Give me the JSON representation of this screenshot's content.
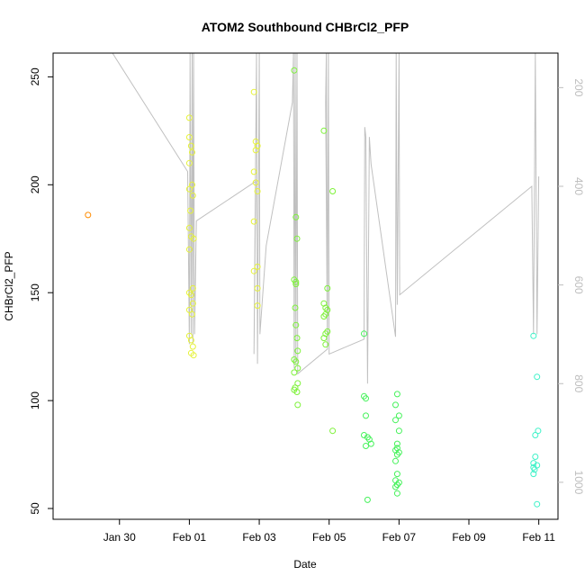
{
  "chart_data": {
    "type": "scatter",
    "title": "ATOM2 Southbound CHBrCl2_PFP",
    "xlabel": "Date",
    "ylabel": "CHBrCl2_PFP",
    "x_ticks": [
      "Jan 30",
      "Feb 01",
      "Feb 03",
      "Feb 05",
      "Feb 07",
      "Feb 09",
      "Feb 11"
    ],
    "x_tick_days": [
      30,
      32,
      34,
      36,
      38,
      40,
      42
    ],
    "xlim": [
      28.1,
      42.55
    ],
    "y_ticks": [
      50,
      100,
      150,
      200,
      250
    ],
    "ylim": [
      45,
      261
    ],
    "right_axis": {
      "ticks": [
        200,
        400,
        600,
        800,
        1000
      ],
      "range": [
        130,
        1075
      ],
      "color": "#bdbdbd",
      "reversed": true
    },
    "grid": false,
    "legend": "none",
    "series": [
      {
        "color": "#ff8c00",
        "points": [
          [
            29.1,
            186
          ]
        ]
      },
      {
        "color": "#e6f23a",
        "points": [
          [
            32.0,
            222
          ],
          [
            32.05,
            218
          ],
          [
            32.0,
            210
          ],
          [
            32.08,
            200
          ],
          [
            32.0,
            198
          ],
          [
            32.1,
            195
          ],
          [
            32.03,
            188
          ],
          [
            32.0,
            180
          ],
          [
            32.05,
            176
          ],
          [
            32.0,
            170
          ],
          [
            32.1,
            152
          ],
          [
            32.0,
            150
          ],
          [
            32.05,
            149
          ],
          [
            32.1,
            145
          ],
          [
            32.0,
            142
          ],
          [
            32.08,
            140
          ],
          [
            32.0,
            130
          ],
          [
            32.05,
            128
          ],
          [
            32.1,
            125
          ],
          [
            32.05,
            122
          ],
          [
            32.0,
            231
          ],
          [
            32.08,
            215
          ],
          [
            32.12,
            175
          ],
          [
            32.12,
            121
          ],
          [
            33.85,
            243
          ],
          [
            33.9,
            220
          ],
          [
            33.95,
            218
          ],
          [
            33.9,
            216
          ],
          [
            33.85,
            206
          ],
          [
            33.9,
            201
          ],
          [
            33.95,
            197
          ],
          [
            33.85,
            183
          ],
          [
            33.95,
            162
          ],
          [
            33.85,
            160
          ],
          [
            33.95,
            152
          ],
          [
            33.95,
            144
          ]
        ]
      },
      {
        "color": "#7ef23a",
        "points": [
          [
            35.0,
            253
          ],
          [
            35.05,
            185
          ],
          [
            35.08,
            175
          ],
          [
            35.0,
            156
          ],
          [
            35.05,
            154
          ],
          [
            35.03,
            143
          ],
          [
            35.05,
            135
          ],
          [
            35.08,
            129
          ],
          [
            35.1,
            123
          ],
          [
            35.0,
            119
          ],
          [
            35.05,
            118
          ],
          [
            35.1,
            115
          ],
          [
            35.0,
            113
          ],
          [
            35.1,
            108
          ],
          [
            35.03,
            106
          ],
          [
            35.0,
            105
          ],
          [
            35.08,
            104
          ],
          [
            35.1,
            98
          ],
          [
            35.05,
            155
          ],
          [
            35.85,
            225
          ],
          [
            35.95,
            152
          ],
          [
            35.85,
            145
          ],
          [
            35.9,
            143
          ],
          [
            35.95,
            142
          ],
          [
            35.9,
            140
          ],
          [
            35.85,
            139
          ],
          [
            35.95,
            132
          ],
          [
            35.9,
            131
          ],
          [
            35.85,
            129
          ],
          [
            35.9,
            126
          ],
          [
            36.1,
            197
          ],
          [
            36.1,
            86
          ]
        ]
      },
      {
        "color": "#45f25a",
        "points": [
          [
            37.0,
            131
          ],
          [
            37.0,
            102
          ],
          [
            37.05,
            101
          ],
          [
            37.05,
            93
          ],
          [
            37.0,
            84
          ],
          [
            37.1,
            83
          ],
          [
            37.15,
            82
          ],
          [
            37.2,
            80
          ],
          [
            37.05,
            79
          ],
          [
            37.1,
            54
          ],
          [
            37.95,
            103
          ],
          [
            37.9,
            98
          ],
          [
            38.0,
            93
          ],
          [
            37.9,
            91
          ],
          [
            38.0,
            86
          ],
          [
            37.95,
            80
          ],
          [
            37.95,
            78
          ],
          [
            37.9,
            77
          ],
          [
            38.0,
            76
          ],
          [
            37.95,
            75
          ],
          [
            37.9,
            72
          ],
          [
            37.95,
            66
          ],
          [
            37.9,
            63
          ],
          [
            38.0,
            62
          ],
          [
            37.95,
            61
          ],
          [
            37.9,
            60
          ],
          [
            37.95,
            57
          ]
        ]
      },
      {
        "color": "#3ef2c8",
        "points": [
          [
            41.85,
            130
          ],
          [
            41.95,
            111
          ],
          [
            41.98,
            86
          ],
          [
            41.9,
            84
          ],
          [
            41.9,
            74
          ],
          [
            41.85,
            71
          ],
          [
            41.95,
            70
          ],
          [
            41.85,
            69
          ],
          [
            41.88,
            68
          ],
          [
            41.85,
            66
          ],
          [
            41.95,
            52
          ]
        ]
      }
    ],
    "flight_track": {
      "color": "#c0c0c0",
      "axis": "right",
      "points": [
        [
          29.8,
          130
        ],
        [
          31.95,
          370
        ],
        [
          32.0,
          720
        ],
        [
          32.02,
          130
        ],
        [
          32.05,
          700
        ],
        [
          32.08,
          130
        ],
        [
          32.1,
          720
        ],
        [
          32.12,
          130
        ],
        [
          32.15,
          700
        ],
        [
          32.2,
          470
        ],
        [
          33.9,
          390
        ],
        [
          33.85,
          740
        ],
        [
          33.92,
          130
        ],
        [
          33.95,
          760
        ],
        [
          34.0,
          130
        ],
        [
          34.02,
          700
        ],
        [
          34.2,
          520
        ],
        [
          34.95,
          230
        ],
        [
          34.98,
          130
        ],
        [
          35.0,
          770
        ],
        [
          35.03,
          130
        ],
        [
          35.05,
          760
        ],
        [
          35.08,
          130
        ],
        [
          35.1,
          780
        ],
        [
          35.95,
          730
        ],
        [
          35.9,
          230
        ],
        [
          35.92,
          130
        ],
        [
          35.95,
          720
        ],
        [
          35.98,
          130
        ],
        [
          36.0,
          740
        ],
        [
          37.0,
          710
        ],
        [
          37.02,
          280
        ],
        [
          37.05,
          300
        ],
        [
          37.1,
          800
        ],
        [
          37.15,
          300
        ],
        [
          37.2,
          355
        ],
        [
          37.9,
          705
        ],
        [
          37.92,
          130
        ],
        [
          37.95,
          640
        ],
        [
          38.0,
          130
        ],
        [
          38.02,
          620
        ],
        [
          41.8,
          400
        ],
        [
          41.85,
          700
        ],
        [
          41.9,
          130
        ],
        [
          41.95,
          700
        ],
        [
          42.0,
          380
        ]
      ]
    }
  }
}
